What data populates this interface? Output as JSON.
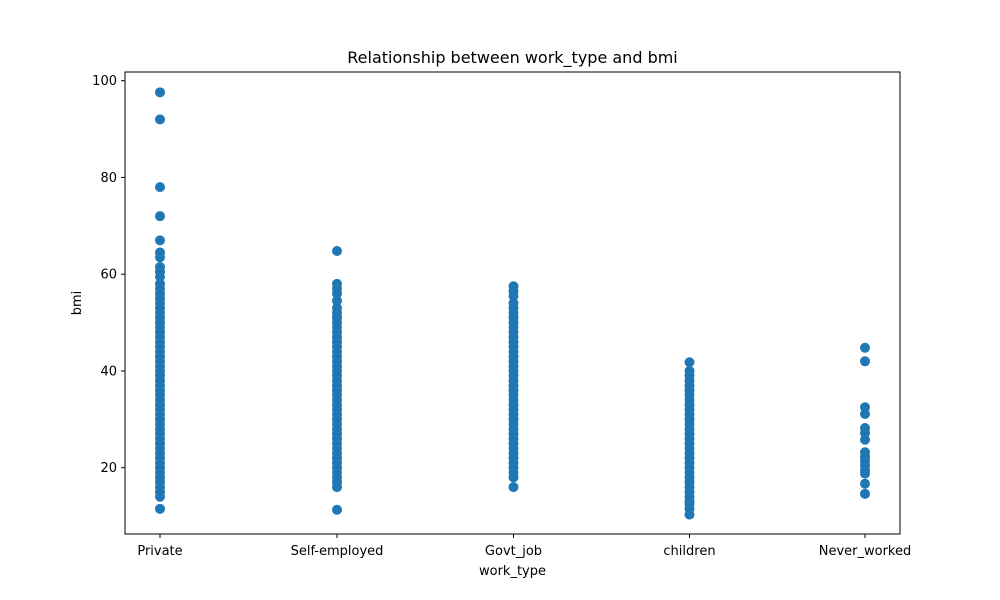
{
  "chart_data": {
    "type": "scatter",
    "title": "Relationship between work_type and bmi",
    "xlabel": "work_type",
    "ylabel": "bmi",
    "categories": [
      "Private",
      "Self-employed",
      "Govt_job",
      "children",
      "Never_worked"
    ],
    "yticks": [
      20,
      40,
      60,
      80,
      100
    ],
    "ylim": [
      6.3,
      101.8
    ],
    "grid": false,
    "legend": "none",
    "marker_color": "#1f77b4",
    "series": [
      {
        "category": "Private",
        "values": [
          11.5,
          14.0,
          15.0,
          16.0,
          17.0,
          18.0,
          19.0,
          20.0,
          21.0,
          22.0,
          23.0,
          24.0,
          25.0,
          26.0,
          27.0,
          28.0,
          29.0,
          30.0,
          31.0,
          32.0,
          33.0,
          34.0,
          35.0,
          36.0,
          37.0,
          38.0,
          39.0,
          40.0,
          41.0,
          42.0,
          43.0,
          44.0,
          45.0,
          46.0,
          47.0,
          48.0,
          49.0,
          50.0,
          51.0,
          52.0,
          53.0,
          54.0,
          55.0,
          56.0,
          57.0,
          58.0,
          59.5,
          60.5,
          61.5,
          63.5,
          64.5,
          67.0,
          72.0,
          78.0,
          92.0,
          97.6
        ]
      },
      {
        "category": "Self-employed",
        "values": [
          11.3,
          16.0,
          17.0,
          18.0,
          19.0,
          20.0,
          21.0,
          22.0,
          23.0,
          24.0,
          25.0,
          26.0,
          27.0,
          28.0,
          29.0,
          30.0,
          31.0,
          32.0,
          33.0,
          34.0,
          35.0,
          36.0,
          37.0,
          38.0,
          39.0,
          40.0,
          41.0,
          42.0,
          43.0,
          44.0,
          45.0,
          46.0,
          47.0,
          48.0,
          49.0,
          50.0,
          51.0,
          52.0,
          53.0,
          54.5,
          56.0,
          57.0,
          58.0,
          64.8
        ]
      },
      {
        "category": "Govt_job",
        "values": [
          16.0,
          18.0,
          19.0,
          20.0,
          21.0,
          22.0,
          23.0,
          24.0,
          25.0,
          26.0,
          27.0,
          28.0,
          29.0,
          30.0,
          31.0,
          32.0,
          33.0,
          34.0,
          35.0,
          36.0,
          37.0,
          38.0,
          39.0,
          40.0,
          41.0,
          42.0,
          43.0,
          44.0,
          45.0,
          46.0,
          47.0,
          48.0,
          49.0,
          50.0,
          51.0,
          52.0,
          53.0,
          54.0,
          55.5,
          56.5,
          57.5
        ]
      },
      {
        "category": "children",
        "values": [
          10.3,
          11.5,
          12.5,
          13.0,
          14.0,
          15.0,
          16.0,
          17.0,
          18.0,
          19.0,
          20.0,
          21.0,
          22.0,
          23.0,
          24.0,
          25.0,
          26.0,
          27.0,
          28.0,
          29.0,
          30.0,
          31.0,
          32.0,
          33.0,
          34.0,
          35.0,
          36.0,
          37.0,
          38.0,
          39.0,
          40.0,
          41.8
        ]
      },
      {
        "category": "Never_worked",
        "values": [
          14.6,
          16.7,
          18.8,
          19.5,
          20.5,
          21.5,
          22.3,
          23.2,
          25.8,
          27.2,
          28.2,
          31.1,
          32.5,
          42.0,
          44.8
        ]
      }
    ]
  }
}
